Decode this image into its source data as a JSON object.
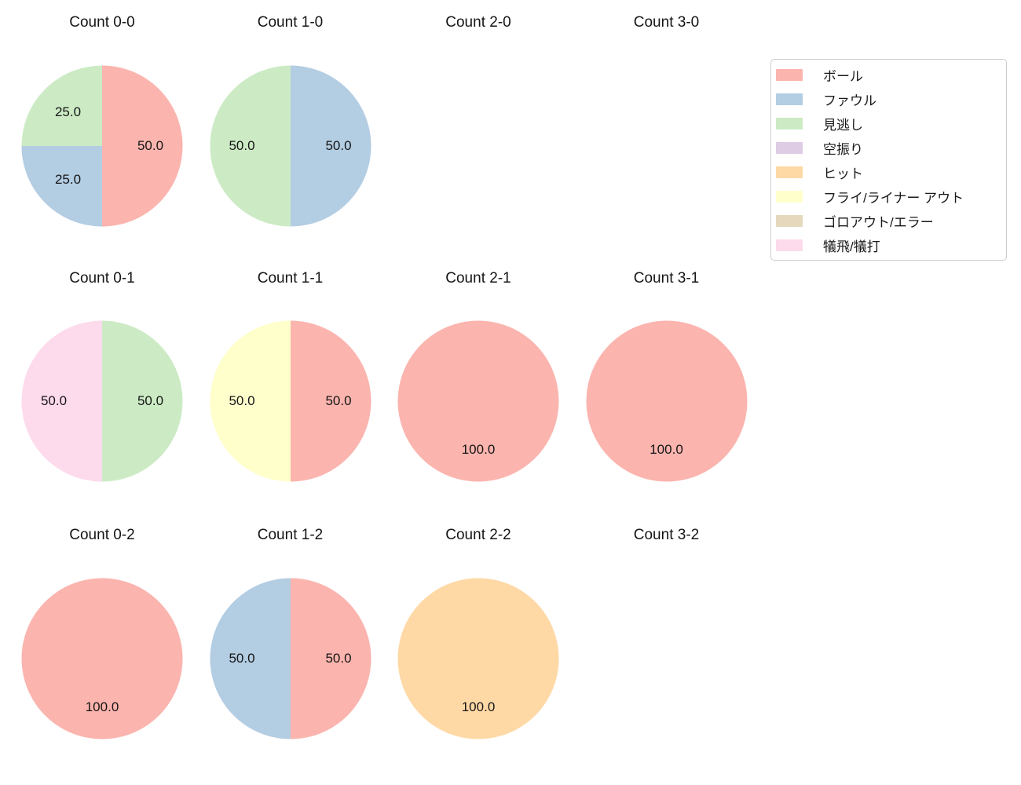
{
  "figure": {
    "background_color": "#ffffff"
  },
  "legend": {
    "border_color": "#cccccc",
    "items": [
      {
        "label": "ボール",
        "color": "#fbb4ae"
      },
      {
        "label": "ファウル",
        "color": "#b3cde3"
      },
      {
        "label": "見逃し",
        "color": "#ccebc5"
      },
      {
        "label": "空振り",
        "color": "#decbe4"
      },
      {
        "label": "ヒット",
        "color": "#fed9a6"
      },
      {
        "label": "フライ/ライナー アウト",
        "color": "#ffffcc"
      },
      {
        "label": "ゴロアウト/エラー",
        "color": "#e5d8bd"
      },
      {
        "label": "犠飛/犠打",
        "color": "#fddaec"
      }
    ]
  },
  "chart_data": [
    {
      "type": "pie",
      "title": "Count 0-0",
      "grid": {
        "row": 0,
        "col": 0
      },
      "start_angle_deg": 0,
      "direction": "clockwise",
      "slices": [
        {
          "label": "ボール",
          "value": 50.0,
          "color": "#fbb4ae"
        },
        {
          "label": "ファウル",
          "value": 25.0,
          "color": "#b3cde3"
        },
        {
          "label": "見逃し",
          "value": 25.0,
          "color": "#ccebc5"
        }
      ]
    },
    {
      "type": "pie",
      "title": "Count 1-0",
      "grid": {
        "row": 0,
        "col": 1
      },
      "start_angle_deg": 0,
      "direction": "clockwise",
      "slices": [
        {
          "label": "ファウル",
          "value": 50.0,
          "color": "#b3cde3"
        },
        {
          "label": "見逃し",
          "value": 50.0,
          "color": "#ccebc5"
        }
      ]
    },
    {
      "type": "pie",
      "title": "Count 2-0",
      "grid": {
        "row": 0,
        "col": 2
      },
      "slices": []
    },
    {
      "type": "pie",
      "title": "Count 3-0",
      "grid": {
        "row": 0,
        "col": 3
      },
      "slices": []
    },
    {
      "type": "pie",
      "title": "Count 0-1",
      "grid": {
        "row": 1,
        "col": 0
      },
      "start_angle_deg": 0,
      "direction": "clockwise",
      "slices": [
        {
          "label": "見逃し",
          "value": 50.0,
          "color": "#ccebc5"
        },
        {
          "label": "犠飛/犠打",
          "value": 50.0,
          "color": "#fddaec"
        }
      ]
    },
    {
      "type": "pie",
      "title": "Count 1-1",
      "grid": {
        "row": 1,
        "col": 1
      },
      "start_angle_deg": 0,
      "direction": "clockwise",
      "slices": [
        {
          "label": "ボール",
          "value": 50.0,
          "color": "#fbb4ae"
        },
        {
          "label": "フライ/ライナー アウト",
          "value": 50.0,
          "color": "#ffffcc"
        }
      ]
    },
    {
      "type": "pie",
      "title": "Count 2-1",
      "grid": {
        "row": 1,
        "col": 2
      },
      "start_angle_deg": 0,
      "direction": "clockwise",
      "slices": [
        {
          "label": "ボール",
          "value": 100.0,
          "color": "#fbb4ae"
        }
      ]
    },
    {
      "type": "pie",
      "title": "Count 3-1",
      "grid": {
        "row": 1,
        "col": 3
      },
      "start_angle_deg": 0,
      "direction": "clockwise",
      "slices": [
        {
          "label": "ボール",
          "value": 100.0,
          "color": "#fbb4ae"
        }
      ]
    },
    {
      "type": "pie",
      "title": "Count 0-2",
      "grid": {
        "row": 2,
        "col": 0
      },
      "start_angle_deg": 0,
      "direction": "clockwise",
      "slices": [
        {
          "label": "ボール",
          "value": 100.0,
          "color": "#fbb4ae"
        }
      ]
    },
    {
      "type": "pie",
      "title": "Count 1-2",
      "grid": {
        "row": 2,
        "col": 1
      },
      "start_angle_deg": 0,
      "direction": "clockwise",
      "slices": [
        {
          "label": "ボール",
          "value": 50.0,
          "color": "#fbb4ae"
        },
        {
          "label": "ファウル",
          "value": 50.0,
          "color": "#b3cde3"
        }
      ]
    },
    {
      "type": "pie",
      "title": "Count 2-2",
      "grid": {
        "row": 2,
        "col": 2
      },
      "start_angle_deg": 0,
      "direction": "clockwise",
      "slices": [
        {
          "label": "ヒット",
          "value": 100.0,
          "color": "#fed9a6"
        }
      ]
    },
    {
      "type": "pie",
      "title": "Count 3-2",
      "grid": {
        "row": 2,
        "col": 3
      },
      "slices": []
    }
  ]
}
